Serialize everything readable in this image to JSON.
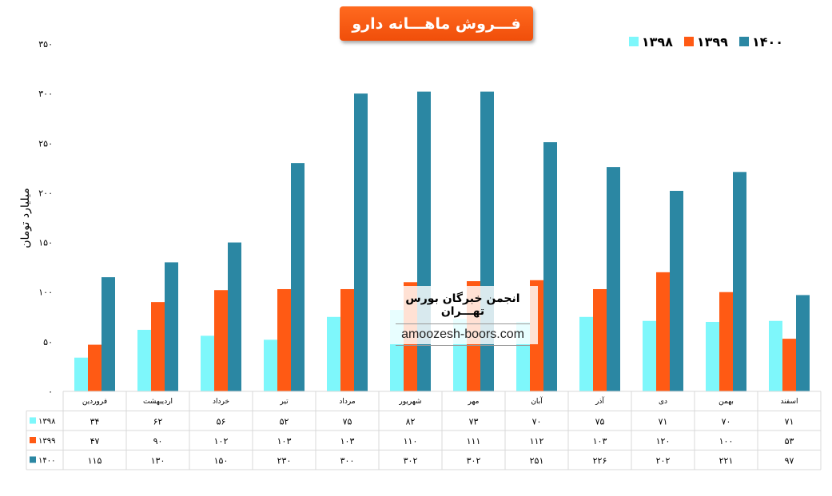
{
  "chart_data": {
    "type": "bar",
    "title": "فـــروش ماهـــانه دارو",
    "ylabel": "میلیارد تومان",
    "ylim": [
      0,
      350
    ],
    "y_ticks": [
      "۰",
      "۵۰",
      "۱۰۰",
      "۱۵۰",
      "۲۰۰",
      "۲۵۰",
      "۳۰۰",
      "۳۵۰"
    ],
    "y_tick_values": [
      0,
      50,
      100,
      150,
      200,
      250,
      300,
      350
    ],
    "categories": [
      "فروردین",
      "اردیبهشت",
      "خرداد",
      "تیر",
      "مرداد",
      "شهریور",
      "مهر",
      "آبان",
      "آذر",
      "دی",
      "بهمن",
      "اسفند"
    ],
    "series": [
      {
        "name": "۱۳۹۸",
        "color": "#7ef7fb",
        "values": [
          34,
          62,
          56,
          52,
          75,
          82,
          73,
          70,
          75,
          71,
          70,
          71
        ],
        "labels": [
          "۳۴",
          "۶۲",
          "۵۶",
          "۵۲",
          "۷۵",
          "۸۲",
          "۷۳",
          "۷۰",
          "۷۵",
          "۷۱",
          "۷۰",
          "۷۱"
        ]
      },
      {
        "name": "۱۳۹۹",
        "color": "#ff5a14",
        "values": [
          47,
          90,
          102,
          103,
          103,
          110,
          111,
          112,
          103,
          120,
          100,
          53
        ],
        "labels": [
          "۴۷",
          "۹۰",
          "۱۰۲",
          "۱۰۳",
          "۱۰۳",
          "۱۱۰",
          "۱۱۱",
          "۱۱۲",
          "۱۰۳",
          "۱۲۰",
          "۱۰۰",
          "۵۳"
        ]
      },
      {
        "name": "۱۴۰۰",
        "color": "#2b87a3",
        "values": [
          115,
          130,
          150,
          230,
          300,
          302,
          302,
          251,
          226,
          202,
          221,
          97
        ],
        "labels": [
          "۱۱۵",
          "۱۳۰",
          "۱۵۰",
          "۲۳۰",
          "۳۰۰",
          "۳۰۲",
          "۳۰۲",
          "۲۵۱",
          "۲۲۶",
          "۲۰۲",
          "۲۲۱",
          "۹۷"
        ]
      }
    ],
    "legend_position": "top-right",
    "grid": false,
    "data_table": true
  },
  "watermark": {
    "title": "انجمن خبرگان بورس تهـــران",
    "url": "amoozesh-boors.com"
  }
}
